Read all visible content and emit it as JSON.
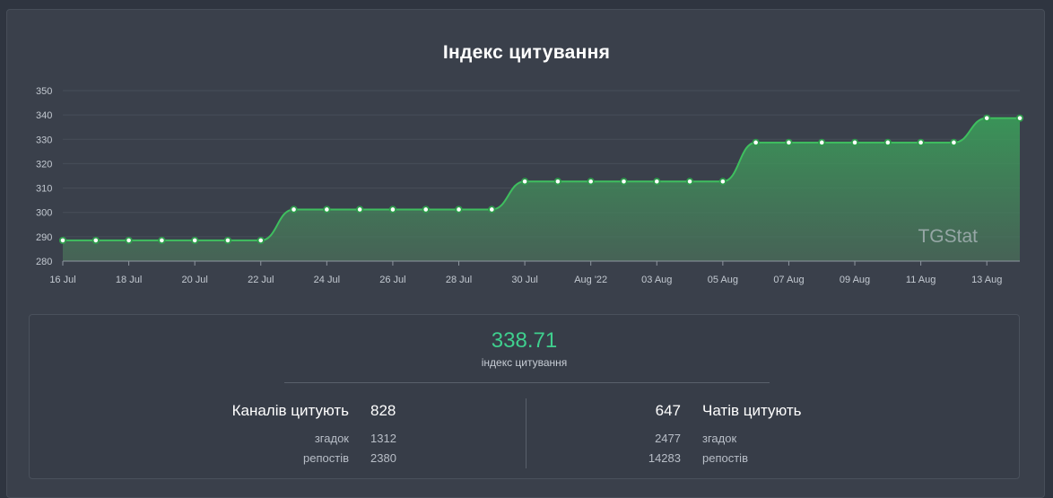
{
  "chart_data": {
    "type": "area",
    "title": "Індекс цитування",
    "watermark": "TGStat",
    "ylim": [
      280,
      350
    ],
    "yticks": [
      280,
      290,
      300,
      310,
      320,
      330,
      340,
      350
    ],
    "x_labels": [
      "16 Jul",
      "18 Jul",
      "20 Jul",
      "22 Jul",
      "24 Jul",
      "26 Jul",
      "28 Jul",
      "30 Jul",
      "Aug '22",
      "03 Aug",
      "05 Aug",
      "07 Aug",
      "09 Aug",
      "11 Aug",
      "13 Aug"
    ],
    "x": [
      "16 Jul",
      "17 Jul",
      "18 Jul",
      "19 Jul",
      "20 Jul",
      "21 Jul",
      "22 Jul",
      "23 Jul",
      "24 Jul",
      "25 Jul",
      "26 Jul",
      "27 Jul",
      "28 Jul",
      "29 Jul",
      "30 Jul",
      "31 Jul",
      "01 Aug",
      "02 Aug",
      "03 Aug",
      "04 Aug",
      "05 Aug",
      "06 Aug",
      "07 Aug",
      "08 Aug",
      "09 Aug",
      "10 Aug",
      "11 Aug",
      "12 Aug",
      "13 Aug",
      "14 Aug"
    ],
    "series": [
      {
        "values": [
          288.5,
          288.5,
          288.5,
          288.5,
          288.5,
          288.5,
          288.5,
          301.2,
          301.2,
          301.2,
          301.2,
          301.2,
          301.2,
          301.2,
          312.7,
          312.7,
          312.7,
          312.7,
          312.7,
          312.7,
          312.7,
          328.7,
          328.7,
          328.7,
          328.7,
          328.7,
          328.7,
          328.7,
          338.7,
          338.7
        ],
        "color": "#3fbf5f"
      }
    ],
    "grid": true,
    "legend": "none"
  },
  "summary": {
    "value": "338.71",
    "label": "індекс цитування",
    "channels_label": "Каналів цитують",
    "channels_value": "828",
    "channels_mentions_label": "згадок",
    "channels_mentions_value": "1312",
    "channels_reposts_label": "репостів",
    "channels_reposts_value": "2380",
    "chats_label": "Чатів цитують",
    "chats_value": "647",
    "chats_mentions_label": "згадок",
    "chats_mentions_value": "2477",
    "chats_reposts_label": "репостів",
    "chats_reposts_value": "14283"
  },
  "colors": {
    "accent": "#3fcf8e",
    "line": "#3fbf5f",
    "background": "#3a404b"
  }
}
